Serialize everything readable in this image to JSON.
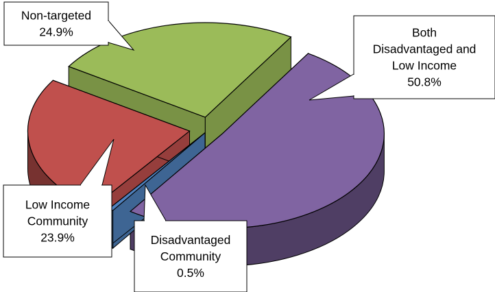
{
  "chart_data": {
    "type": "pie",
    "style": "3d-exploded",
    "legend": "none",
    "series": [
      {
        "slices": [
          {
            "label": "Both Disadvantaged and Low Income",
            "value": 50.8,
            "display": "50.8%",
            "color": "#8064a2"
          },
          {
            "label": "Disadvantaged Community",
            "value": 0.5,
            "display": "0.5%",
            "color": "#4f81bd"
          },
          {
            "label": "Low Income Community",
            "value": 23.9,
            "display": "23.9%",
            "color": "#c0504d"
          },
          {
            "label": "Non-targeted",
            "value": 24.9,
            "display": "24.9%",
            "color": "#9bbb59"
          }
        ]
      }
    ]
  },
  "callouts": [
    {
      "lines": [
        "Both",
        "Disadvantaged and",
        "Low Income",
        "50.8%"
      ]
    },
    {
      "lines": [
        "Disadvantaged",
        "Community",
        "0.5%"
      ]
    },
    {
      "lines": [
        "Low Income",
        "Community",
        "23.9%"
      ]
    },
    {
      "lines": [
        "Non-targeted",
        "24.9%"
      ]
    }
  ]
}
